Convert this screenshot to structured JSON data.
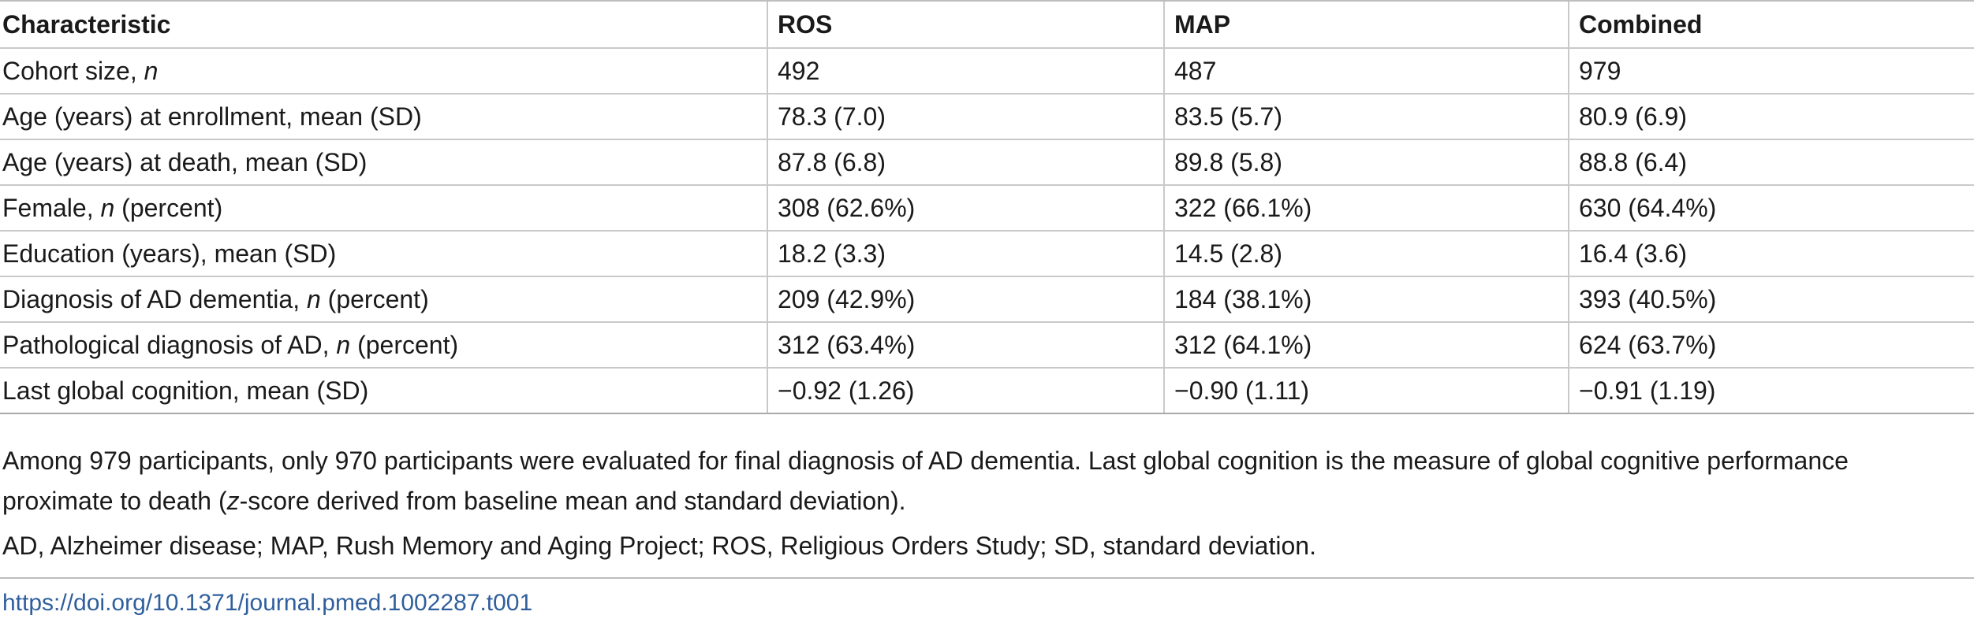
{
  "table": {
    "headers": [
      "Characteristic",
      "ROS",
      "MAP",
      "Combined"
    ],
    "rows": [
      {
        "label_pre": "Cohort size, ",
        "label_italic": "n",
        "label_post": "",
        "ros": "492",
        "map": "487",
        "combined": "979"
      },
      {
        "label_pre": "Age (years) at enrollment, mean (SD)",
        "label_italic": "",
        "label_post": "",
        "ros": "78.3 (7.0)",
        "map": "83.5 (5.7)",
        "combined": "80.9 (6.9)"
      },
      {
        "label_pre": "Age (years) at death, mean (SD)",
        "label_italic": "",
        "label_post": "",
        "ros": "87.8 (6.8)",
        "map": "89.8 (5.8)",
        "combined": "88.8 (6.4)"
      },
      {
        "label_pre": "Female, ",
        "label_italic": "n",
        "label_post": " (percent)",
        "ros": "308 (62.6%)",
        "map": "322 (66.1%)",
        "combined": "630 (64.4%)"
      },
      {
        "label_pre": "Education (years), mean (SD)",
        "label_italic": "",
        "label_post": "",
        "ros": "18.2 (3.3)",
        "map": "14.5 (2.8)",
        "combined": "16.4 (3.6)"
      },
      {
        "label_pre": "Diagnosis of AD dementia, ",
        "label_italic": "n",
        "label_post": " (percent)",
        "ros": "209 (42.9%)",
        "map": "184 (38.1%)",
        "combined": "393 (40.5%)"
      },
      {
        "label_pre": "Pathological diagnosis of AD, ",
        "label_italic": "n",
        "label_post": " (percent)",
        "ros": "312 (63.4%)",
        "map": "312 (64.1%)",
        "combined": "624 (63.7%)"
      },
      {
        "label_pre": "Last global cognition, mean (SD)",
        "label_italic": "",
        "label_post": "",
        "ros": "−0.92 (1.26)",
        "map": "−0.90 (1.11)",
        "combined": "−0.91 (1.19)"
      }
    ]
  },
  "footnotes": {
    "note1_pre": "Among 979 participants, only 970 participants were evaluated for final diagnosis of AD dementia. Last global cognition is the measure of global cognitive performance proximate to death (",
    "note1_italic": "z",
    "note1_post": "-score derived from baseline mean and standard deviation).",
    "note2": "AD, Alzheimer disease; MAP, Rush Memory and Aging Project; ROS, Religious Orders Study; SD, standard deviation."
  },
  "doi_link": "https://doi.org/10.1371/journal.pmed.1002287.t001",
  "colors": {
    "link": "#2f5f9c",
    "rule": "#c9c9c9"
  }
}
